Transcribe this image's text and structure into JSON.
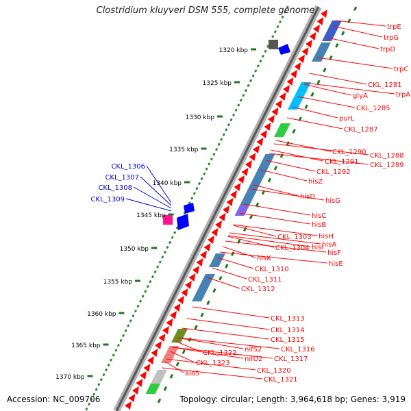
{
  "title": "Clostridium kluyveri DSM 555, complete genome",
  "accession": "Accession: NC_009706",
  "topology": "Topology: circular; Length: 3,964,618 bp; Genes: 3,919",
  "scale_labels": [
    "1320 kbp",
    "1325 kbp",
    "1330 kbp",
    "1335 kbp",
    "1340 kbp",
    "1345 kbp",
    "1350 kbp",
    "1355 kbp",
    "1360 kbp",
    "1365 kbp",
    "1370 kbp"
  ],
  "gene_labels_right": [
    "trpE",
    "trpG",
    "trpD",
    "trpC",
    "CKL_1281",
    "trpA",
    "glyA",
    "CKL_1285",
    "purL",
    "CKL_1287",
    "CKL_1288",
    "CKL_1290",
    "CKL_1289",
    "CKL_1291",
    "CKL_1292",
    "hisZ",
    "hisD",
    "hisG",
    "hisC",
    "hisB",
    "CKL_1303",
    "hisH",
    "CKL_1304",
    "hisI",
    "hisA",
    "hisF",
    "hisK",
    "hisE",
    "CKL_1310",
    "CKL_1311",
    "CKL_1312",
    "CKL_1313",
    "CKL_1314",
    "CKL_1315",
    "nifS2",
    "CKL_1316",
    "nifU2",
    "CKL_1317",
    "CKL_1322",
    "CKL_1323",
    "CKL_1320",
    "CKL_1321",
    "alaS"
  ],
  "gene_labels_left": [
    "CKL_1306",
    "CKL_1307",
    "CKL_1308",
    "CKL_1309"
  ],
  "colors": {
    "gene_red": "#ff0000",
    "gene_blue": "#0000ff",
    "tick_green": "#1a7a1a",
    "backbone": "#888888"
  }
}
